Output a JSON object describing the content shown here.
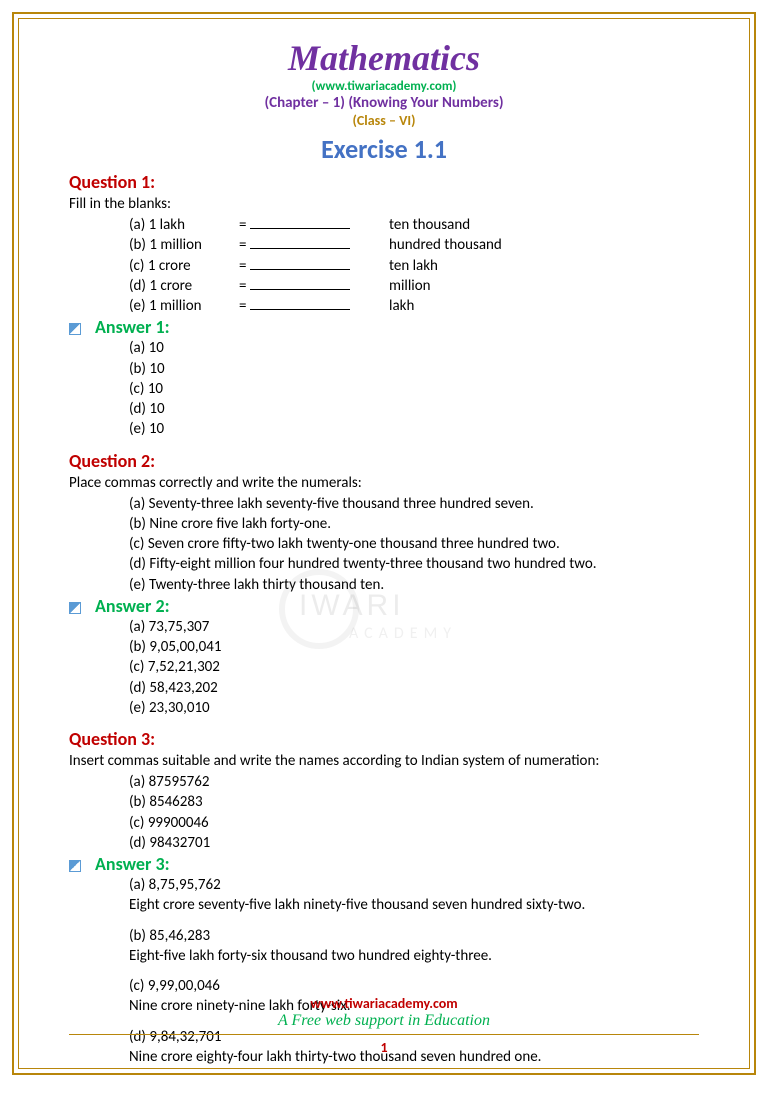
{
  "header": {
    "subject": "Mathematics",
    "url": "(www.tiwariacademy.com)",
    "chapter": "(Chapter – 1) (Knowing Your Numbers)",
    "class": "(Class – VI)",
    "exercise": "Exercise 1.1"
  },
  "q1": {
    "label": "Question 1:",
    "intro": "Fill in the blanks:",
    "rows": [
      {
        "a": "(a) 1 lakh",
        "b": "=",
        "c": "ten thousand"
      },
      {
        "a": "(b) 1 million",
        "b": "=",
        "c": "hundred thousand"
      },
      {
        "a": "(c) 1 crore",
        "b": "=",
        "c": "ten lakh"
      },
      {
        "a": "(d) 1 crore",
        "b": "=",
        "c": "million"
      },
      {
        "a": "(e) 1 million",
        "b": "=",
        "c": "lakh"
      }
    ],
    "answer_label": "Answer 1:",
    "answers": [
      "(a) 10",
      "(b) 10",
      "(c) 10",
      "(d) 10",
      "(e) 10"
    ]
  },
  "q2": {
    "label": "Question 2:",
    "intro": "Place commas correctly and write the numerals:",
    "items": [
      "(a) Seventy-three lakh seventy-five thousand three hundred seven.",
      "(b) Nine crore five lakh forty-one.",
      "(c) Seven crore fifty-two lakh twenty-one thousand three hundred two.",
      "(d) Fifty-eight million four hundred twenty-three thousand two hundred two.",
      "(e) Twenty-three lakh thirty thousand ten."
    ],
    "answer_label": "Answer 2:",
    "answers": [
      "(a) 73,75,307",
      "(b) 9,05,00,041",
      "(c) 7,52,21,302",
      "(d) 58,423,202",
      "(e) 23,30,010"
    ]
  },
  "q3": {
    "label": "Question 3:",
    "intro": "Insert commas suitable and write the names according to Indian system of numeration:",
    "items": [
      "(a) 87595762",
      "(b) 8546283",
      "(c) 99900046",
      "(d) 98432701"
    ],
    "answer_label": "Answer 3:",
    "answers": [
      {
        "num": "(a) 8,75,95,762",
        "words": "Eight crore seventy-five lakh ninety-five thousand seven hundred sixty-two."
      },
      {
        "num": "(b) 85,46,283",
        "words": "Eight-five lakh forty-six thousand two hundred eighty-three."
      },
      {
        "num": "(c) 9,99,00,046",
        "words": "Nine crore ninety-nine lakh forty-six."
      },
      {
        "num": "(d) 9,84,32,701",
        "words": "Nine crore eighty-four lakh thirty-two thousand seven hundred one."
      }
    ]
  },
  "footer": {
    "url": "www.tiwariacademy.com",
    "tagline": "A Free web support in Education",
    "page": "1"
  },
  "watermark": {
    "main": "IWARI",
    "sub": "ACADEMY"
  }
}
